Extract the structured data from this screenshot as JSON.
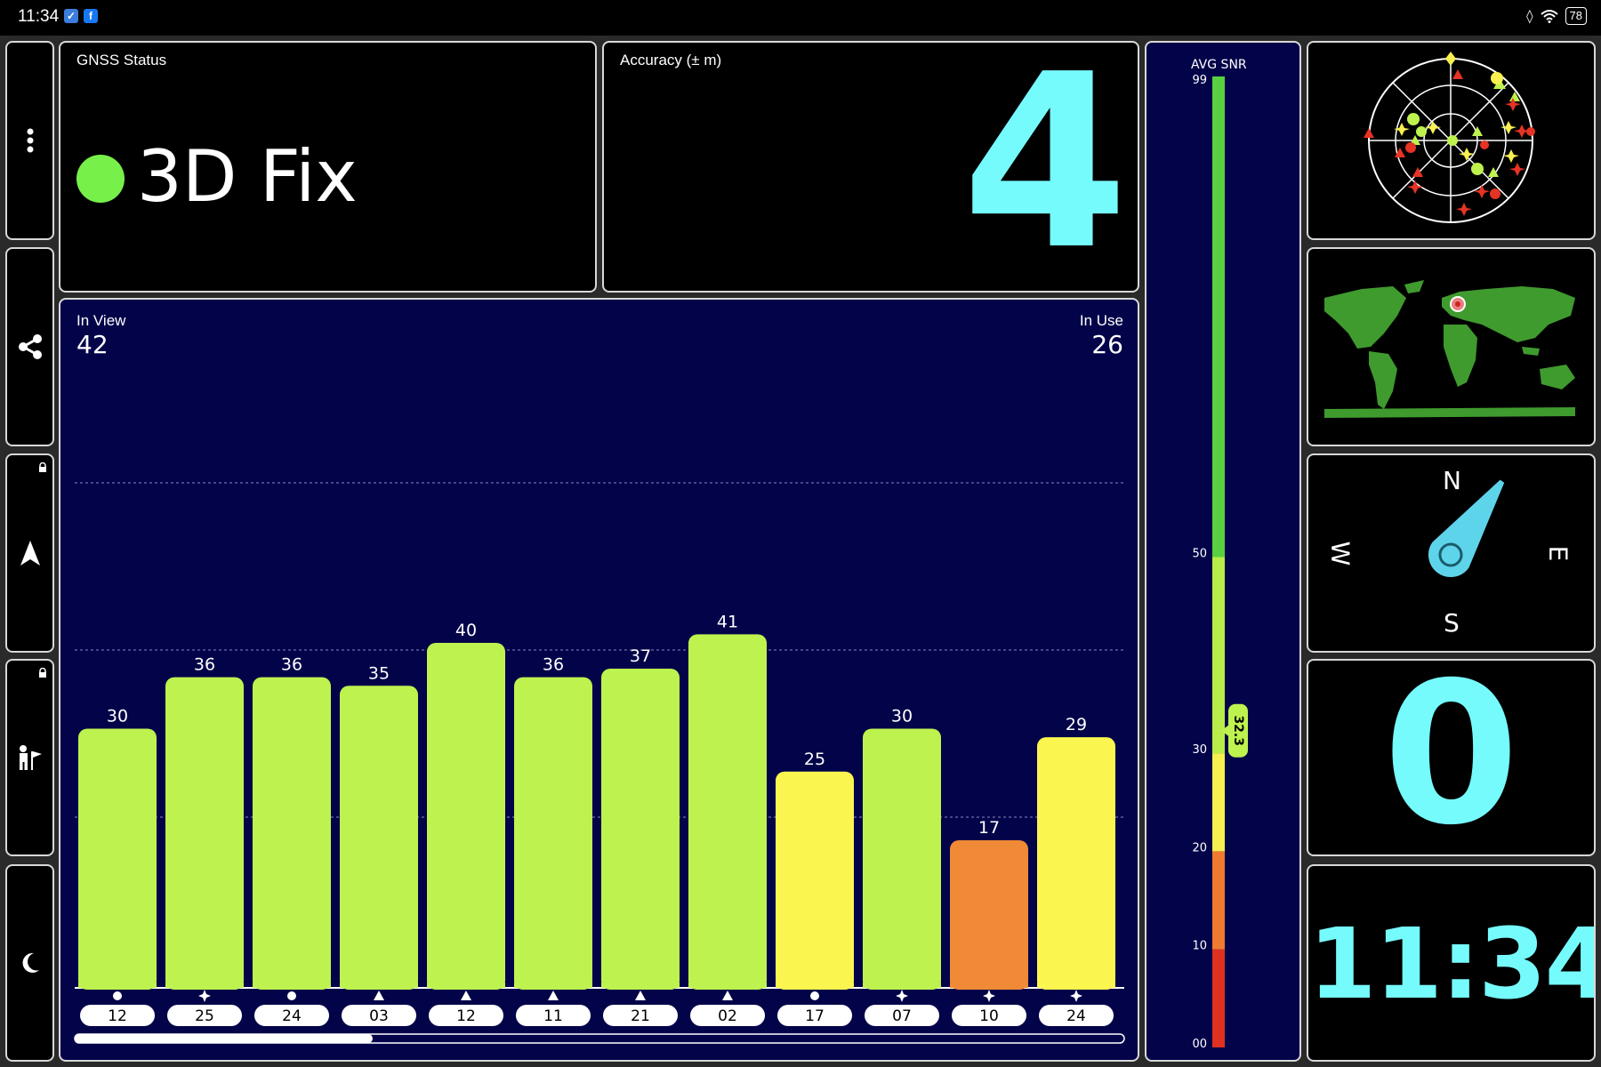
{
  "status_bar": {
    "time": "11:34",
    "battery": "78"
  },
  "gnss_status": {
    "label": "GNSS Status",
    "value": "3D Fix",
    "indicator_color": "#77f04a"
  },
  "accuracy": {
    "label": "Accuracy (± m)",
    "value": "4"
  },
  "satellites": {
    "in_view_label": "In View",
    "in_view": "42",
    "in_use_label": "In Use",
    "in_use": "26"
  },
  "chart_data": {
    "type": "bar",
    "categories": [
      "12",
      "25",
      "24",
      "03",
      "12",
      "11",
      "21",
      "02",
      "17",
      "07",
      "10",
      "24"
    ],
    "values": [
      30,
      36,
      36,
      35,
      40,
      36,
      37,
      41,
      25,
      30,
      17,
      29
    ],
    "symbols": [
      "circle",
      "star",
      "circle",
      "triangle",
      "triangle",
      "triangle",
      "triangle",
      "triangle",
      "circle",
      "star",
      "star",
      "star"
    ],
    "colors": [
      "#bef24f",
      "#bef24f",
      "#bef24f",
      "#bef24f",
      "#bef24f",
      "#bef24f",
      "#bef24f",
      "#bef24f",
      "#fbf550",
      "#bef24f",
      "#f08a36",
      "#fbf550"
    ],
    "ylim": [
      0,
      60
    ],
    "grid": true
  },
  "snr_scale": {
    "label": "AVG SNR",
    "ticks": [
      "99",
      "50",
      "30",
      "20",
      "10",
      "00"
    ],
    "tick_values": [
      99,
      50,
      30,
      20,
      10,
      0
    ],
    "avg": "32.3",
    "avg_value": 32.3,
    "segments": [
      {
        "from": 0,
        "to": 10,
        "color": "#e03020"
      },
      {
        "from": 10,
        "to": 20,
        "color": "#f07a30"
      },
      {
        "from": 20,
        "to": 30,
        "color": "#f5ef50"
      },
      {
        "from": 30,
        "to": 50,
        "color": "#b8ec48"
      },
      {
        "from": 50,
        "to": 99,
        "color": "#58d040"
      }
    ]
  },
  "compass": {
    "n": "N",
    "e": "E",
    "s": "S",
    "w": "W",
    "heading_deg": 35
  },
  "speed": {
    "value": "0"
  },
  "clock": {
    "value": "11:34"
  }
}
